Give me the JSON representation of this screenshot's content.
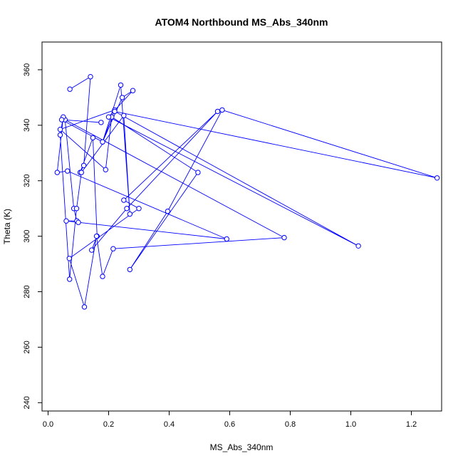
{
  "chart_data": {
    "type": "line",
    "title": "ATOM4 Northbound MS_Abs_340nm",
    "xlabel": "MS_Abs_340nm",
    "ylabel": "Theta (K)",
    "xlim": [
      -0.02,
      1.3
    ],
    "ylim": [
      237,
      370
    ],
    "xticks": [
      0.0,
      0.2,
      0.4,
      0.6,
      0.8,
      1.0,
      1.2
    ],
    "xtick_labels": [
      "0.0",
      "0.2",
      "0.4",
      "0.6",
      "0.8",
      "1.0",
      "1.2"
    ],
    "yticks": [
      240,
      260,
      280,
      300,
      320,
      340,
      360
    ],
    "ytick_labels": [
      "240",
      "260",
      "280",
      "300",
      "320",
      "340",
      "360"
    ],
    "grid": false,
    "marker": "open-circle",
    "color": "#0000ff",
    "series": [
      {
        "x": [
          0.072,
          0.14,
          0.118,
          0.106,
          0.148,
          0.162,
          0.144,
          0.26,
          0.56,
          0.25,
          0.3,
          0.07,
          0.12,
          0.16,
          0.18,
          0.215,
          0.78,
          0.056,
          0.085,
          0.095,
          0.06,
          0.1,
          0.59,
          0.064,
          0.03,
          0.05,
          0.04,
          0.071,
          0.094,
          0.11,
          0.25,
          0.27,
          0.24,
          0.18,
          0.22,
          0.04,
          0.19,
          0.21,
          0.495,
          0.27,
          0.395,
          0.575,
          1.285,
          0.22,
          1.025,
          0.2,
          0.28,
          0.245,
          0.18,
          0.045,
          0.175
        ],
        "y": [
          353,
          357.5,
          325.5,
          323,
          335.5,
          300,
          295,
          310,
          345,
          313,
          310,
          292,
          274.5,
          300,
          285.5,
          295.5,
          299.5,
          342,
          310,
          305.5,
          305.5,
          305,
          299,
          323.5,
          323,
          343,
          336.5,
          284.5,
          310,
          323,
          343.5,
          308,
          354.5,
          334,
          345.5,
          338.5,
          324,
          343,
          323,
          288,
          309,
          345.5,
          321,
          345,
          296.5,
          343,
          352.5,
          350,
          334,
          342,
          341
        ]
      }
    ]
  }
}
